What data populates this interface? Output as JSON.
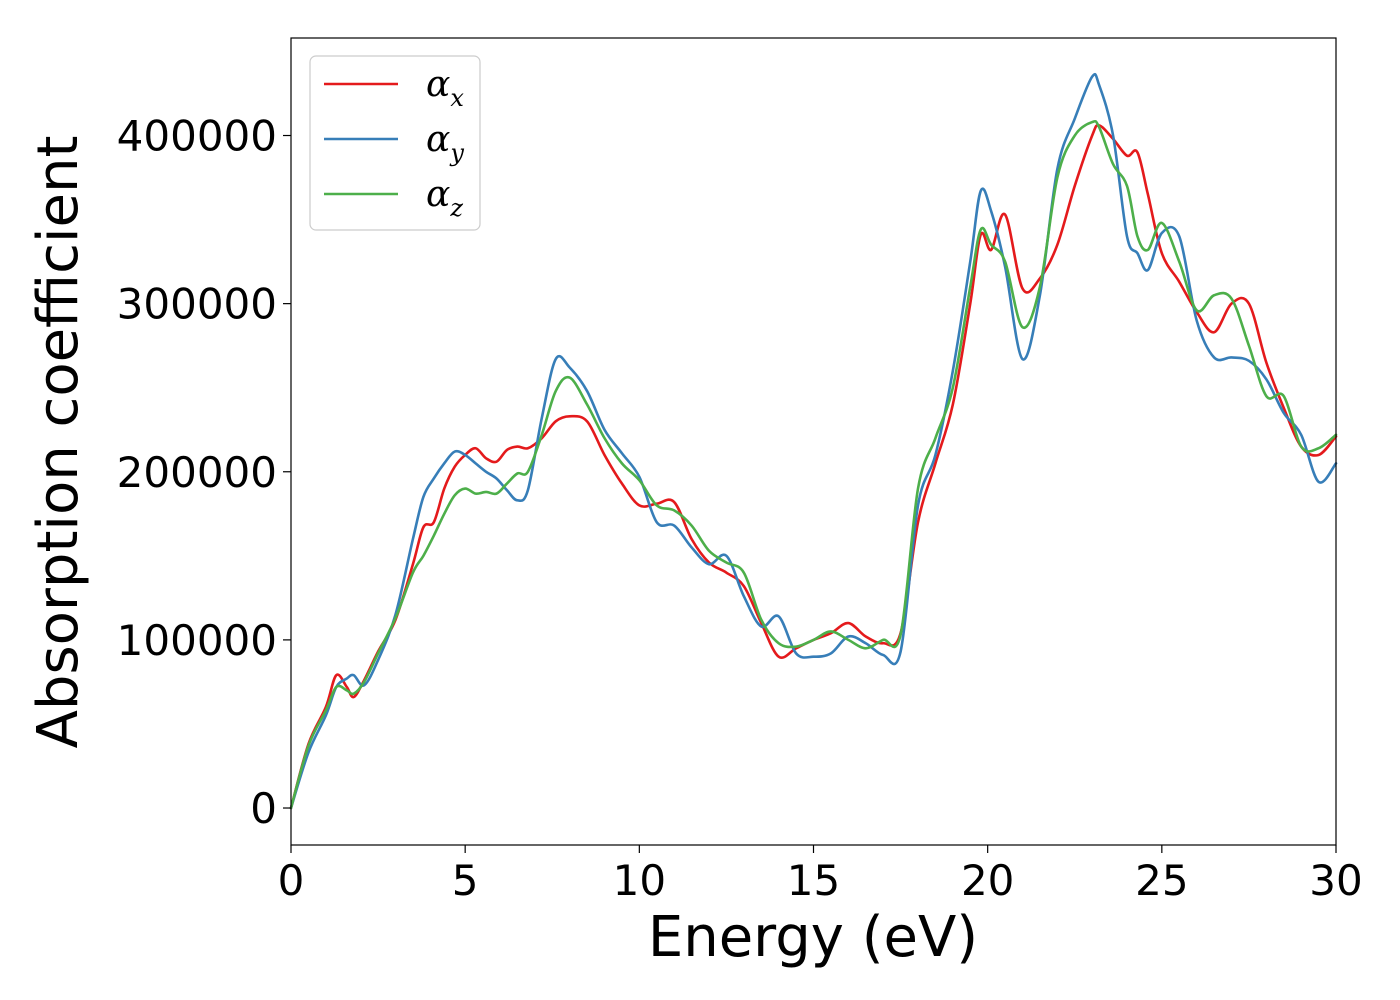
{
  "chart_data": {
    "type": "line",
    "title": "",
    "xlabel": "Energy (eV)",
    "ylabel": "Absorption coefficient",
    "xlim": [
      0,
      30
    ],
    "ylim": [
      -22000,
      458000
    ],
    "xticks": [
      0,
      5,
      10,
      15,
      20,
      25,
      30
    ],
    "yticks": [
      0,
      100000,
      200000,
      300000,
      400000
    ],
    "grid": false,
    "legend_position": "top-left",
    "series": [
      {
        "name": "α_x",
        "symbol": "α",
        "subscript": "x",
        "color": "#e41a1c",
        "x": [
          0,
          0.5,
          1,
          1.3,
          1.6,
          1.8,
          2.1,
          2.5,
          3,
          3.5,
          3.8,
          4.1,
          4.4,
          4.7,
          5,
          5.3,
          5.6,
          5.9,
          6.2,
          6.5,
          6.8,
          7.2,
          7.6,
          8,
          8.5,
          9,
          9.5,
          10,
          10.5,
          11,
          11.5,
          12,
          12.5,
          13,
          13.5,
          14,
          14.5,
          15,
          15.5,
          16,
          16.5,
          17,
          17.5,
          18,
          18.5,
          19,
          19.5,
          19.8,
          20.1,
          20.5,
          21,
          21.5,
          22,
          22.5,
          23,
          23.2,
          23.6,
          24,
          24.3,
          24.6,
          25,
          25.5,
          26,
          26.5,
          27,
          27.5,
          28,
          28.5,
          29,
          29.5,
          30
        ],
        "y": [
          0,
          38000,
          60000,
          79000,
          72000,
          66000,
          76000,
          93000,
          112000,
          145000,
          167000,
          170000,
          190000,
          203000,
          210000,
          214000,
          208000,
          206000,
          213000,
          215000,
          214000,
          220000,
          230000,
          233000,
          230000,
          210000,
          193000,
          180000,
          181000,
          182000,
          160000,
          146000,
          140000,
          132000,
          110000,
          90000,
          95000,
          100000,
          104000,
          110000,
          102000,
          98000,
          104000,
          170000,
          205000,
          240000,
          300000,
          341000,
          332000,
          353000,
          309000,
          315000,
          335000,
          370000,
          400000,
          406000,
          398000,
          388000,
          390000,
          365000,
          330000,
          313000,
          295000,
          283000,
          300000,
          300000,
          265000,
          238000,
          215000,
          210000,
          221000
        ]
      },
      {
        "name": "α_y",
        "symbol": "α",
        "subscript": "y",
        "color": "#377eb8",
        "x": [
          0,
          0.5,
          1,
          1.3,
          1.6,
          1.8,
          2.1,
          2.5,
          3,
          3.5,
          3.8,
          4.1,
          4.4,
          4.7,
          5,
          5.3,
          5.6,
          5.9,
          6.2,
          6.5,
          6.8,
          7.2,
          7.6,
          8,
          8.5,
          9,
          9.5,
          10,
          10.5,
          11,
          11.5,
          12,
          12.5,
          13,
          13.5,
          14,
          14.5,
          15,
          15.5,
          16,
          16.5,
          17,
          17.5,
          18,
          18.5,
          19,
          19.5,
          19.8,
          20.1,
          20.5,
          21,
          21.5,
          22,
          22.5,
          23,
          23.2,
          23.6,
          24,
          24.3,
          24.6,
          25,
          25.5,
          26,
          26.5,
          27,
          27.5,
          28,
          28.5,
          29,
          29.5,
          30
        ],
        "y": [
          0,
          33000,
          55000,
          72000,
          77000,
          79000,
          73000,
          88000,
          115000,
          160000,
          185000,
          196000,
          205000,
          212000,
          210000,
          205000,
          200000,
          196000,
          189000,
          183000,
          189000,
          232000,
          267000,
          262000,
          248000,
          225000,
          211000,
          197000,
          170000,
          168000,
          155000,
          145000,
          150000,
          126000,
          108000,
          114000,
          92000,
          90000,
          92000,
          102000,
          98000,
          91000,
          93000,
          180000,
          210000,
          260000,
          325000,
          367000,
          355000,
          322000,
          267000,
          305000,
          380000,
          410000,
          435000,
          430000,
          400000,
          340000,
          330000,
          320000,
          342000,
          340000,
          290000,
          268000,
          268000,
          266000,
          255000,
          235000,
          222000,
          194000,
          205000
        ]
      },
      {
        "name": "α_z",
        "symbol": "α",
        "subscript": "z",
        "color": "#4daf4a",
        "x": [
          0,
          0.5,
          1,
          1.3,
          1.6,
          1.8,
          2.1,
          2.5,
          3,
          3.5,
          3.8,
          4.1,
          4.4,
          4.7,
          5,
          5.3,
          5.6,
          5.9,
          6.2,
          6.5,
          6.8,
          7.2,
          7.6,
          8,
          8.5,
          9,
          9.5,
          10,
          10.5,
          11,
          11.5,
          12,
          12.5,
          13,
          13.5,
          14,
          14.5,
          15,
          15.5,
          16,
          16.5,
          17,
          17.5,
          18,
          18.5,
          19,
          19.5,
          19.8,
          20.1,
          20.5,
          21,
          21.5,
          22,
          22.5,
          23,
          23.2,
          23.6,
          24,
          24.3,
          24.6,
          25,
          25.5,
          26,
          26.5,
          27,
          27.5,
          28,
          28.5,
          29,
          29.5,
          30
        ],
        "y": [
          0,
          37000,
          58000,
          72000,
          70000,
          68000,
          75000,
          92000,
          113000,
          140000,
          150000,
          162000,
          175000,
          186000,
          190000,
          187000,
          188000,
          187000,
          193000,
          199000,
          200000,
          222000,
          248000,
          256000,
          240000,
          220000,
          205000,
          195000,
          180000,
          177000,
          168000,
          153000,
          146000,
          140000,
          112000,
          98000,
          96000,
          100000,
          105000,
          100000,
          95000,
          100000,
          103000,
          190000,
          220000,
          250000,
          310000,
          344000,
          335000,
          325000,
          286000,
          310000,
          375000,
          400000,
          408000,
          405000,
          383000,
          370000,
          340000,
          332000,
          348000,
          325000,
          296000,
          305000,
          303000,
          275000,
          245000,
          245000,
          215000,
          214000,
          222000
        ]
      }
    ]
  }
}
